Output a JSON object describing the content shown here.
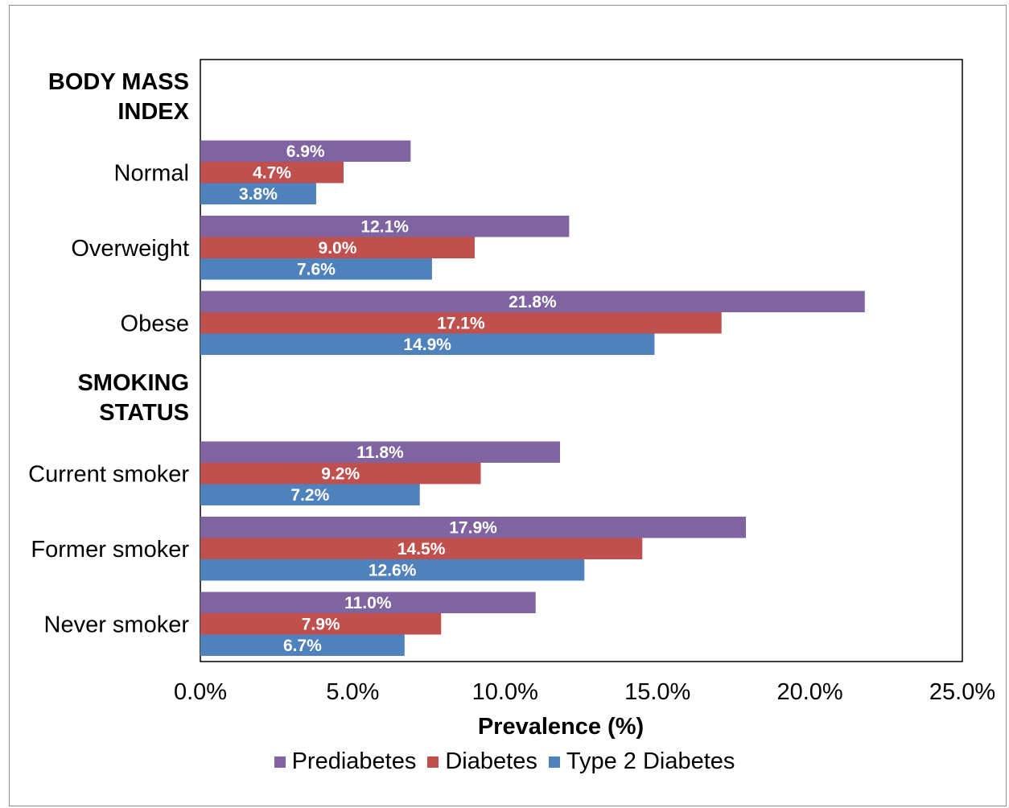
{
  "chart_data": {
    "type": "bar",
    "orientation": "horizontal",
    "title": "",
    "xlabel": "Prevalence (%)",
    "ylabel": "",
    "xlim": [
      0,
      25
    ],
    "x_ticks": [
      "0.0%",
      "5.0%",
      "10.0%",
      "15.0%",
      "20.0%",
      "25.0%"
    ],
    "grid": false,
    "legend_position": "bottom",
    "groups": [
      {
        "heading": "BODY MASS INDEX",
        "heading_lines": [
          "BODY MASS",
          "INDEX"
        ],
        "categories": [
          {
            "name": "Normal",
            "values": [
              6.9,
              4.7,
              3.8
            ],
            "labels": [
              "6.9%",
              "4.7%",
              "3.8%"
            ]
          },
          {
            "name": "Overweight",
            "values": [
              12.1,
              9.0,
              7.6
            ],
            "labels": [
              "12.1%",
              "9.0%",
              "7.6%"
            ]
          },
          {
            "name": "Obese",
            "values": [
              21.8,
              17.1,
              14.9
            ],
            "labels": [
              "21.8%",
              "17.1%",
              "14.9%"
            ]
          }
        ]
      },
      {
        "heading": "SMOKING STATUS",
        "heading_lines": [
          "SMOKING",
          "STATUS"
        ],
        "categories": [
          {
            "name": "Current smoker",
            "values": [
              11.8,
              9.2,
              7.2
            ],
            "labels": [
              "11.8%",
              "9.2%",
              "7.2%"
            ]
          },
          {
            "name": "Former smoker",
            "values": [
              17.9,
              14.5,
              12.6
            ],
            "labels": [
              "17.9%",
              "14.5%",
              "12.6%"
            ]
          },
          {
            "name": "Never smoker",
            "values": [
              11.0,
              7.9,
              6.7
            ],
            "labels": [
              "11.0%",
              "7.9%",
              "6.7%"
            ]
          }
        ]
      }
    ],
    "series": [
      {
        "name": "Prediabetes",
        "color": "#8064a2"
      },
      {
        "name": "Diabetes",
        "color": "#c0504d"
      },
      {
        "name": "Type 2 Diabetes",
        "color": "#4f81bd"
      }
    ]
  }
}
